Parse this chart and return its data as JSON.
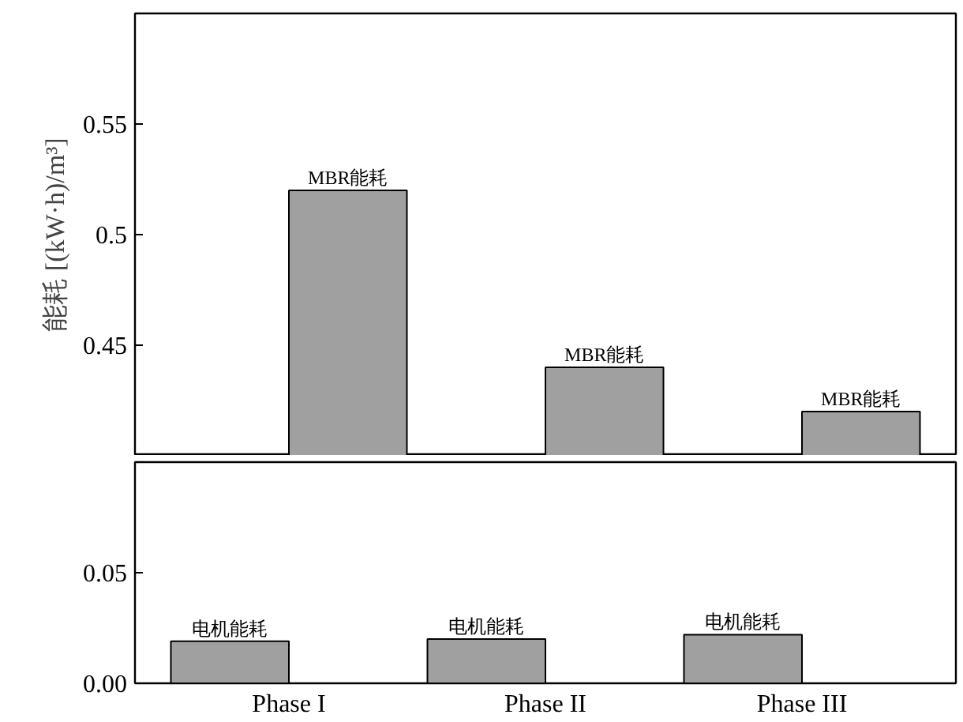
{
  "chart_data": [
    {
      "type": "bar",
      "ylabel": "能耗 [(kW·h)/m³]",
      "ylim": [
        0.4,
        0.6
      ],
      "yticks": [
        0.45,
        0.5,
        0.55
      ],
      "tick_labels": "y",
      "series": [
        {
          "name": "MBR能耗",
          "color": "#a0a0a0",
          "values": [
            0.52,
            0.44,
            0.42
          ]
        }
      ]
    },
    {
      "type": "bar",
      "categories": [
        "Phase I",
        "Phase II",
        "Phase III"
      ],
      "ylim": [
        0,
        0.1
      ],
      "yticks": [
        {
          "value": 0,
          "label": "0.00"
        },
        0.05
      ],
      "series": [
        {
          "name": "电机能耗",
          "color": "#a0a0a0",
          "values": [
            0.019,
            0.02,
            0.022
          ]
        }
      ]
    }
  ]
}
